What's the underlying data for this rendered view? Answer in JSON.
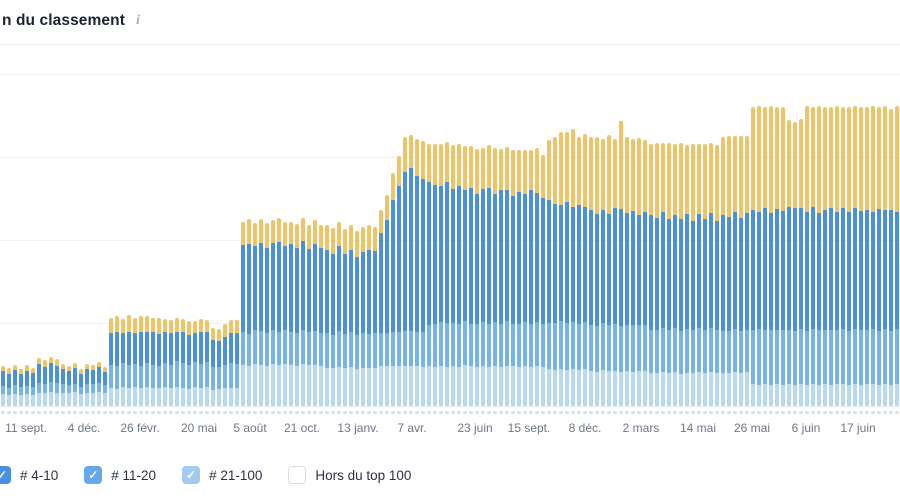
{
  "header": {
    "title": "n du classement",
    "info_icon": "i"
  },
  "legend": {
    "items": [
      {
        "label": "# 4-10",
        "checked": true,
        "box_color": "#4a90e2"
      },
      {
        "label": "# 11-20",
        "checked": true,
        "box_color": "#66a9ea"
      },
      {
        "label": "# 21-100",
        "checked": true,
        "box_color": "#a3cbf1"
      },
      {
        "label": "Hors du top 100",
        "checked": false,
        "box_color": "#ffffff"
      }
    ],
    "check_glyph": "✓"
  },
  "chart_data": {
    "type": "bar",
    "stacked": true,
    "title": "n du classement",
    "xlabel": "",
    "ylabel": "",
    "ylim": [
      0,
      100
    ],
    "grid": true,
    "x_labels": [
      "11 sept.",
      "4 déc.",
      "26 févr.",
      "20 mai",
      "5 août",
      "21 oct.",
      "13 janv.",
      "7 avr.",
      "23 juin",
      "15 sept.",
      "8 déc.",
      "2 mars",
      "14 mai",
      "26 mai",
      "6 juin",
      "17 juin"
    ],
    "series": [
      {
        "id": "r21_100",
        "label": "# 21-100",
        "color": "#b9d9f2"
      },
      {
        "id": "r11_20",
        "label": "# 11-20",
        "color": "#76b3e7"
      },
      {
        "id": "r4_10",
        "label": "# 4-10",
        "color": "#4b91da"
      },
      {
        "id": "top_yellow",
        "label": "",
        "color": "#eec468"
      }
    ],
    "bars": [
      [
        3.5,
        2.5,
        4.5,
        1.5
      ],
      [
        3.2,
        2.3,
        4.2,
        1.8
      ],
      [
        3.6,
        2.6,
        4.8,
        1.5
      ],
      [
        3.3,
        2.4,
        4.0,
        1.6
      ],
      [
        3.5,
        2.5,
        4.6,
        1.9
      ],
      [
        3.4,
        2.2,
        4.3,
        1.5
      ],
      [
        4.0,
        3.0,
        5.6,
        1.8
      ],
      [
        3.8,
        2.8,
        5.2,
        2.0
      ],
      [
        4.1,
        3.1,
        5.8,
        1.7
      ],
      [
        3.9,
        2.9,
        5.4,
        1.9
      ],
      [
        4.0,
        2.5,
        4.6,
        1.5
      ],
      [
        3.8,
        2.4,
        4.3,
        1.7
      ],
      [
        4.1,
        2.6,
        4.8,
        1.4
      ],
      [
        3.5,
        2.2,
        3.9,
        1.5
      ],
      [
        4.0,
        2.5,
        4.7,
        1.6
      ],
      [
        3.9,
        2.6,
        4.4,
        1.5
      ],
      [
        4.2,
        2.7,
        4.9,
        1.6
      ],
      [
        3.8,
        2.4,
        4.2,
        1.4
      ],
      [
        5.5,
        7.0,
        9.6,
        4.4
      ],
      [
        5.2,
        6.8,
        10.2,
        4.8
      ],
      [
        5.8,
        7.2,
        9.0,
        4.2
      ],
      [
        5.4,
        6.9,
        10.0,
        5.0
      ],
      [
        5.6,
        7.1,
        9.4,
        4.3
      ],
      [
        5.3,
        6.7,
        10.4,
        4.6
      ],
      [
        5.7,
        7.3,
        9.2,
        4.8
      ],
      [
        5.5,
        7.0,
        9.8,
        4.1
      ],
      [
        5.4,
        6.8,
        9.5,
        4.7
      ],
      [
        5.6,
        7.5,
        9.2,
        4.0
      ],
      [
        5.3,
        7.2,
        9.6,
        3.8
      ],
      [
        5.8,
        7.8,
        8.8,
        4.2
      ],
      [
        5.5,
        7.4,
        9.4,
        3.9
      ],
      [
        5.2,
        7.1,
        9.0,
        4.3
      ],
      [
        5.7,
        7.6,
        8.6,
        3.7
      ],
      [
        5.4,
        7.3,
        9.5,
        4.1
      ],
      [
        5.6,
        7.7,
        8.9,
        3.8
      ],
      [
        4.9,
        6.8,
        8.3,
        3.4
      ],
      [
        5.1,
        6.6,
        8.0,
        3.6
      ],
      [
        5.3,
        7.0,
        8.6,
        3.8
      ],
      [
        5.5,
        7.4,
        9.1,
        4.0
      ],
      [
        5.4,
        7.2,
        9.3,
        3.9
      ],
      [
        12.4,
        10.0,
        26.0,
        7.0
      ],
      [
        12.0,
        9.8,
        27.0,
        7.4
      ],
      [
        12.8,
        10.2,
        25.2,
        6.8
      ],
      [
        12.5,
        10.0,
        26.6,
        7.2
      ],
      [
        12.2,
        9.7,
        25.6,
        7.5
      ],
      [
        12.6,
        10.3,
        26.2,
        6.9
      ],
      [
        12.3,
        9.9,
        27.2,
        7.1
      ],
      [
        12.7,
        10.1,
        25.4,
        7.3
      ],
      [
        12.4,
        10.0,
        26.4,
        6.7
      ],
      [
        12.1,
        9.8,
        25.8,
        7.2
      ],
      [
        12.6,
        10.2,
        26.8,
        7.0
      ],
      [
        12.3,
        9.9,
        25.0,
        7.4
      ],
      [
        12.5,
        10.1,
        26.2,
        7.1
      ],
      [
        12.2,
        9.8,
        25.6,
        6.8
      ],
      [
        11.6,
        10.5,
        25.0,
        7.4
      ],
      [
        11.3,
        10.2,
        24.4,
        7.7
      ],
      [
        11.8,
        10.7,
        25.6,
        7.2
      ],
      [
        11.4,
        10.4,
        24.0,
        7.6
      ],
      [
        11.7,
        10.6,
        24.8,
        7.3
      ],
      [
        11.2,
        10.1,
        23.6,
        7.8
      ],
      [
        11.6,
        10.5,
        24.4,
        7.4
      ],
      [
        11.5,
        10.3,
        25.2,
        7.6
      ],
      [
        11.4,
        10.6,
        24.6,
        7.2
      ],
      [
        12.0,
        10.0,
        30.0,
        7.0
      ],
      [
        12.0,
        10.0,
        34.0,
        7.5
      ],
      [
        12.0,
        10.2,
        40.0,
        8.0
      ],
      [
        12.0,
        10.4,
        44.0,
        9.0
      ],
      [
        12.0,
        10.5,
        48.0,
        10.5
      ],
      [
        12.2,
        10.5,
        49.0,
        10.0
      ],
      [
        12.0,
        10.3,
        47.0,
        11.0
      ],
      [
        11.8,
        10.5,
        46.0,
        11.5
      ],
      [
        12.0,
        12.5,
        43.0,
        11.5
      ],
      [
        11.8,
        12.8,
        42.0,
        12.2
      ],
      [
        12.2,
        13.0,
        41.0,
        12.8
      ],
      [
        11.9,
        13.2,
        42.4,
        12.0
      ],
      [
        12.1,
        12.9,
        40.4,
        13.2
      ],
      [
        11.7,
        13.1,
        41.6,
        12.4
      ],
      [
        12.3,
        13.3,
        39.6,
        13.0
      ],
      [
        12.0,
        12.8,
        40.8,
        12.6
      ],
      [
        11.8,
        13.0,
        39.2,
        13.4
      ],
      [
        12.2,
        13.2,
        40.0,
        12.2
      ],
      [
        11.9,
        12.7,
        41.2,
        12.8
      ],
      [
        12.1,
        13.1,
        38.8,
        13.6
      ],
      [
        11.8,
        12.9,
        40.4,
        12.4
      ],
      [
        12.2,
        13.3,
        39.6,
        13.0
      ],
      [
        12.0,
        12.8,
        38.4,
        13.8
      ],
      [
        11.7,
        13.0,
        39.8,
        12.6
      ],
      [
        12.1,
        13.2,
        38.6,
        13.2
      ],
      [
        11.9,
        12.9,
        40.2,
        12.0
      ],
      [
        12.2,
        13.1,
        39.0,
        13.4
      ],
      [
        11.8,
        12.8,
        38.2,
        12.8
      ],
      [
        11.0,
        14.0,
        37.0,
        18.0
      ],
      [
        10.8,
        14.2,
        36.0,
        20.0
      ],
      [
        11.2,
        14.4,
        35.0,
        22.0
      ],
      [
        10.9,
        14.1,
        36.4,
        21.0
      ],
      [
        11.1,
        14.3,
        34.6,
        23.4
      ],
      [
        10.7,
        14.0,
        35.8,
        20.6
      ],
      [
        11.0,
        14.2,
        34.8,
        21.8
      ],
      [
        10.5,
        14.0,
        34.6,
        21.9
      ],
      [
        10.2,
        13.8,
        33.8,
        23.2
      ],
      [
        10.7,
        14.2,
        34.2,
        21.4
      ],
      [
        10.4,
        14.0,
        33.4,
        23.8
      ],
      [
        10.6,
        14.1,
        34.8,
        21.0
      ],
      [
        10.3,
        13.9,
        35.2,
        26.6
      ],
      [
        10.5,
        14.0,
        33.6,
        22.9
      ],
      [
        10.2,
        14.2,
        34.4,
        21.7
      ],
      [
        10.6,
        13.8,
        33.2,
        23.1
      ],
      [
        10.4,
        14.0,
        34.0,
        21.6
      ],
      [
        10.0,
        13.0,
        34.4,
        21.6
      ],
      [
        9.8,
        13.2,
        33.6,
        22.6
      ],
      [
        10.2,
        13.4,
        34.8,
        20.8
      ],
      [
        9.9,
        13.1,
        33.2,
        23.0
      ],
      [
        10.1,
        13.3,
        34.0,
        21.4
      ],
      [
        9.7,
        12.9,
        33.8,
        22.8
      ],
      [
        10.0,
        13.2,
        34.6,
        20.9
      ],
      [
        9.8,
        13.0,
        32.8,
        23.4
      ],
      [
        10.2,
        13.4,
        34.2,
        21.2
      ],
      [
        9.9,
        13.1,
        33.4,
        22.4
      ],
      [
        10.1,
        13.3,
        34.8,
        21.0
      ],
      [
        9.8,
        13.0,
        33.0,
        22.7
      ],
      [
        10.0,
        12.5,
        35.0,
        23.5
      ],
      [
        9.8,
        12.7,
        34.4,
        24.4
      ],
      [
        10.2,
        12.9,
        35.4,
        22.8
      ],
      [
        9.9,
        12.6,
        34.0,
        24.8
      ],
      [
        10.1,
        12.8,
        35.2,
        23.2
      ],
      [
        6.5,
        16.5,
        36.0,
        31.0
      ],
      [
        6.3,
        16.8,
        35.4,
        31.8
      ],
      [
        6.7,
        16.3,
        36.6,
        30.6
      ],
      [
        6.4,
        16.6,
        35.0,
        32.4
      ],
      [
        6.6,
        16.4,
        36.2,
        30.8
      ],
      [
        6.3,
        16.7,
        35.6,
        31.6
      ],
      [
        6.5,
        16.5,
        36.8,
        26.4
      ],
      [
        6.4,
        16.2,
        37.0,
        25.9
      ],
      [
        6.6,
        16.6,
        36.4,
        27.0
      ],
      [
        6.3,
        16.4,
        35.8,
        31.9
      ],
      [
        6.5,
        16.7,
        36.6,
        30.4
      ],
      [
        6.4,
        16.5,
        35.2,
        32.2
      ],
      [
        6.6,
        16.3,
        36.0,
        31.2
      ],
      [
        6.3,
        16.6,
        36.8,
        30.5
      ],
      [
        6.5,
        16.4,
        35.4,
        32.0
      ],
      [
        6.7,
        16.6,
        36.2,
        30.6
      ],
      [
        6.4,
        16.3,
        35.8,
        31.7
      ],
      [
        6.6,
        16.5,
        36.4,
        30.9
      ],
      [
        6.3,
        16.7,
        35.6,
        31.6
      ],
      [
        6.5,
        16.4,
        36.0,
        31.3
      ],
      [
        6.7,
        16.6,
        35.2,
        32.0
      ],
      [
        6.4,
        16.3,
        36.6,
        30.8
      ],
      [
        6.6,
        16.5,
        35.8,
        31.4
      ],
      [
        6.3,
        16.4,
        36.2,
        30.7
      ],
      [
        6.5,
        16.6,
        35.4,
        31.8
      ]
    ]
  }
}
